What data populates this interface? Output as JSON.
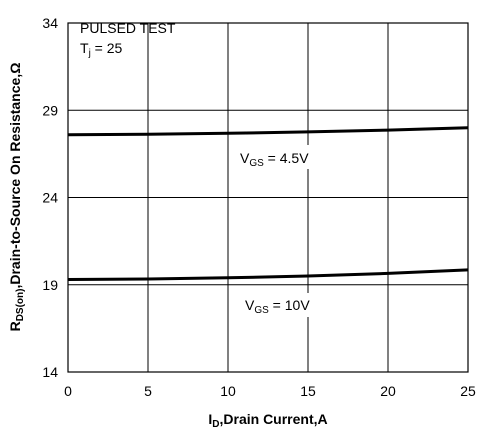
{
  "chart_data": {
    "type": "line",
    "xlabel": {
      "main": "I",
      "sub": "D",
      "rest": ",Drain Current,A"
    },
    "ylabel": {
      "main": "R",
      "sub": "DS(on)",
      "rest": ",Drain-to-Source On Resistance,Ω"
    },
    "xlim": [
      0,
      25
    ],
    "ylim": [
      14,
      34
    ],
    "xticks": [
      "0",
      "5",
      "10",
      "15",
      "20",
      "25"
    ],
    "yticks": [
      "14",
      "19",
      "24",
      "29",
      "34"
    ],
    "grid": true,
    "annotations": {
      "test_line1": "PULSED TEST",
      "test_line2": {
        "main": "T",
        "sub": "j",
        "rest": " = 25"
      }
    },
    "series": [
      {
        "name": {
          "main": "V",
          "sub": "GS",
          "rest": " = 4.5V"
        },
        "x": [
          0,
          5,
          10,
          15,
          20,
          25
        ],
        "y": [
          27.6,
          27.62,
          27.68,
          27.76,
          27.86,
          28.0
        ]
      },
      {
        "name": {
          "main": "V",
          "sub": "GS",
          "rest": " = 10V"
        },
        "x": [
          0,
          5,
          10,
          15,
          20,
          25
        ],
        "y": [
          19.3,
          19.33,
          19.4,
          19.5,
          19.65,
          19.85
        ]
      }
    ]
  }
}
